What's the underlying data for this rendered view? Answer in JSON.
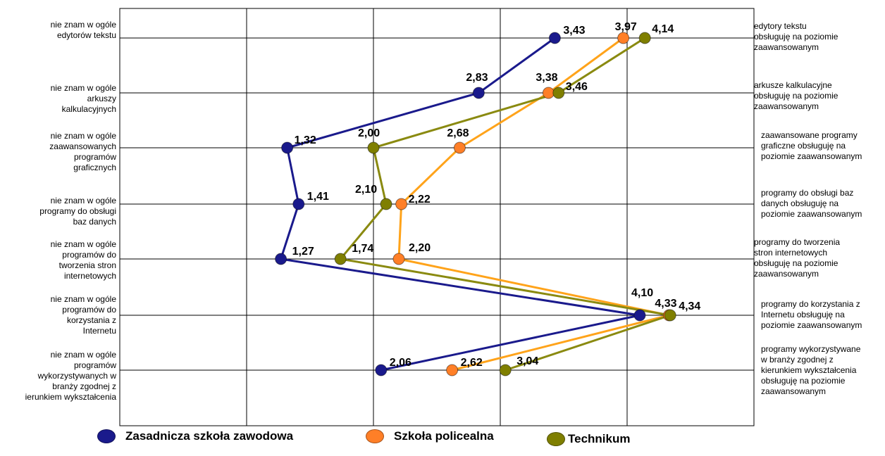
{
  "chart_data": {
    "type": "line",
    "orientation": "horizontal-profile",
    "xlim": [
      0,
      5
    ],
    "grid": true,
    "left_labels": [
      "nie znam w ogóle\nedytorów tekstu",
      "nie znam w ogóle\narkuszy\nkalkulacyjnych",
      "nie znam w ogóle\nzaawansowanych\nprogramów\ngraficznych",
      "nie znam w ogóle\nprogramy do obsługi\nbaz danych",
      "nie znam w ogóle\nprogramów do\ntworzenia stron\ninternetowych",
      "nie znam w ogóle\nprogramów do\nkorzystania z\nInternetu",
      "nie znam w ogóle\nprogramów\nwykorzystywanych w\nbranży zgodnej z\nierunkiem wykształcenia"
    ],
    "right_labels": [
      "edytory tekstu\nobsługuję na poziomie\nzaawansowanym",
      "arkusze kalkulacyjne\nobsługuję na poziomie\nzaawansowanym",
      "zaawansowane programy\ngraficzne  obsługuję na\npoziomie zaawansowanym",
      "programy do obsługi baz\ndanych  obsługuję na\npoziomie zaawansowanym",
      "programy do tworzenia\nstron internetowych\nobsługuję na poziomie\nzaawansowanym",
      "programy do korzystania z\nInternetu obsługuję na\npoziomie zaawansowanym",
      "programy wykorzystywane\nw branży zgodnej z\nkierunkiem wykształcenia\nobsługuję na poziomie\nzaawansowanym"
    ],
    "series": [
      {
        "name": "Zasadnicza szkoła zawodowa",
        "color": "#1a1a8c",
        "values": [
          3.43,
          2.83,
          1.32,
          1.41,
          1.27,
          4.1,
          2.06
        ],
        "labels": [
          "3,43",
          "2,83",
          "1,32",
          "1,41",
          "1,27",
          "4,10",
          "2,06"
        ]
      },
      {
        "name": "Szkoła policealna",
        "color": "#ff7f27",
        "line_color": "#ffa31a",
        "values": [
          3.97,
          3.38,
          2.68,
          2.22,
          2.2,
          4.33,
          2.62
        ],
        "labels": [
          "3,97",
          "3,38",
          "2,68",
          "2,22",
          "2,20",
          "4,33",
          "2,62"
        ]
      },
      {
        "name": "Technikum",
        "color": "#7f7f00",
        "line_color": "#8a8a10",
        "values": [
          4.14,
          3.46,
          2.0,
          2.1,
          1.74,
          4.34,
          3.04
        ],
        "labels": [
          "4,14",
          "3,46",
          "2,00",
          "2,10",
          "1,74",
          "4,34",
          "3,04"
        ]
      }
    ]
  }
}
